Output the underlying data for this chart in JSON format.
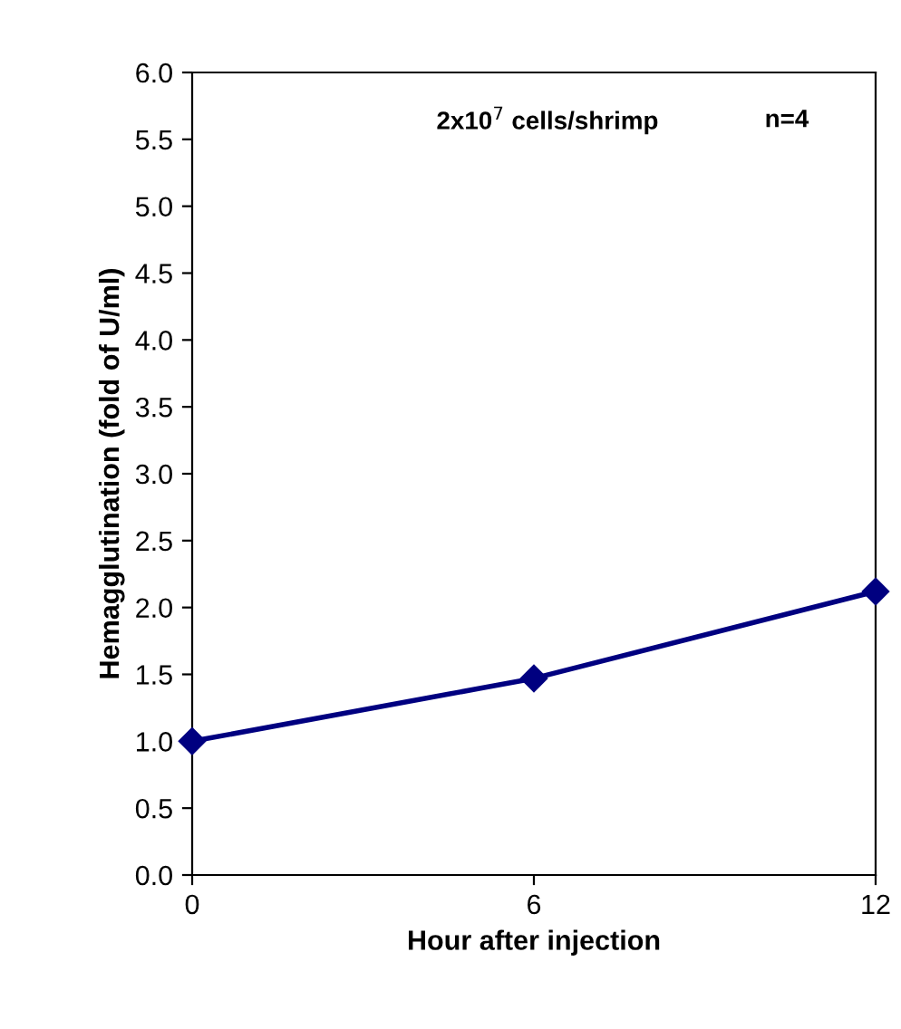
{
  "chart_data": {
    "type": "line",
    "xlabel": "Hour after injection",
    "ylabel": "Hemagglutination (fold of U/ml)",
    "x": [
      0,
      6,
      12
    ],
    "series": [
      {
        "color": "#000080",
        "values": [
          1.0,
          1.47,
          2.12
        ]
      }
    ],
    "xlim": [
      0,
      12
    ],
    "xticks": [
      0,
      6,
      12
    ],
    "ylim": [
      0,
      6
    ],
    "yticks": [
      {
        "value": 0,
        "label": "0.0"
      },
      {
        "value": 0.5,
        "label": "0.5"
      },
      {
        "value": 1,
        "label": "1.0"
      },
      {
        "value": 1.5,
        "label": "1.5"
      },
      {
        "value": 2,
        "label": "2.0"
      },
      {
        "value": 2.5,
        "label": "2.5"
      },
      {
        "value": 3,
        "label": "3.0"
      },
      {
        "value": 3.5,
        "label": "3.5"
      },
      {
        "value": 4,
        "label": "4.0"
      },
      {
        "value": 4.5,
        "label": "4.5"
      },
      {
        "value": 5,
        "label": "5.0"
      },
      {
        "value": 5.5,
        "label": "5.5"
      },
      {
        "value": 6,
        "label": "6.0"
      }
    ],
    "marker": "diamond",
    "line_style": "solid",
    "grid": false,
    "legend": false,
    "annotations": [
      "2x10$^{7}$ cells/shrimp",
      "n=4"
    ]
  }
}
